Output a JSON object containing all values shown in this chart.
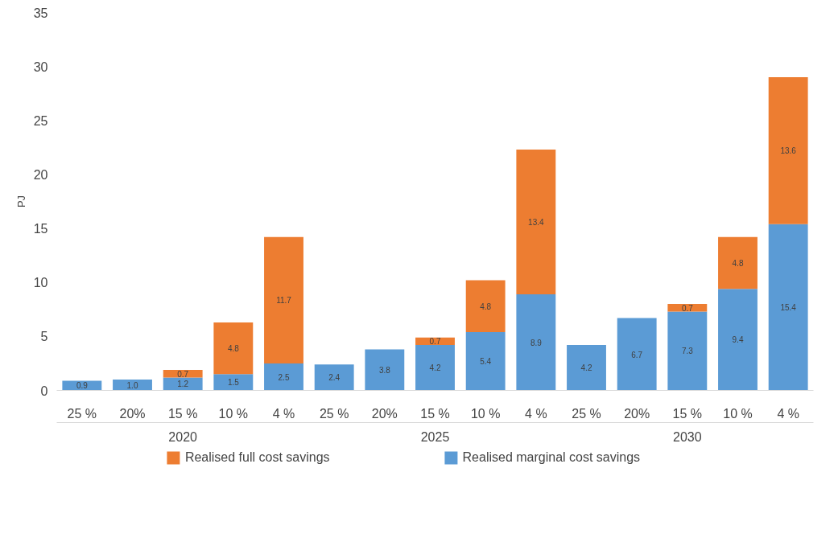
{
  "chart_data": {
    "type": "bar",
    "stacked": true,
    "ylabel": "PJ",
    "ylim": [
      0,
      35
    ],
    "yticks": [
      0,
      5,
      10,
      15,
      20,
      25,
      30,
      35
    ],
    "grid": false,
    "legend": "bottom",
    "categories": [
      "25 %",
      "20%",
      "15 %",
      "10 %",
      "4 %",
      "25 %",
      "20%",
      "15 %",
      "10 %",
      "4 %",
      "25 %",
      "20%",
      "15 %",
      "10 %",
      "4 %"
    ],
    "annotations": [
      "2020",
      "2025",
      "2030"
    ],
    "series": [
      {
        "name": "Realised marginal cost savings",
        "color": "#5b9bd5",
        "values": [
          0.9,
          1.0,
          1.2,
          1.5,
          2.5,
          2.4,
          3.8,
          4.2,
          5.4,
          8.9,
          4.2,
          6.7,
          7.3,
          9.4,
          15.4
        ],
        "value_labels": [
          "0.9",
          "1.0",
          "1.2",
          "1.5",
          "2.5",
          "2.4",
          "3.8",
          "4.2",
          "5.4",
          "8.9",
          "4.2",
          "6.7",
          "7.3",
          "9.4",
          "15.4"
        ]
      },
      {
        "name": "Realised full cost savings",
        "color": "#ed7d31",
        "values": [
          null,
          null,
          0.7,
          4.8,
          11.7,
          null,
          null,
          0.7,
          4.8,
          13.4,
          null,
          null,
          0.7,
          4.8,
          13.6
        ],
        "value_labels": [
          null,
          null,
          "0.7",
          "4.8",
          "11.7",
          null,
          null,
          "0.7",
          "4.8",
          "13.4",
          null,
          null,
          "0.7",
          "4.8",
          "13.6"
        ]
      }
    ]
  }
}
